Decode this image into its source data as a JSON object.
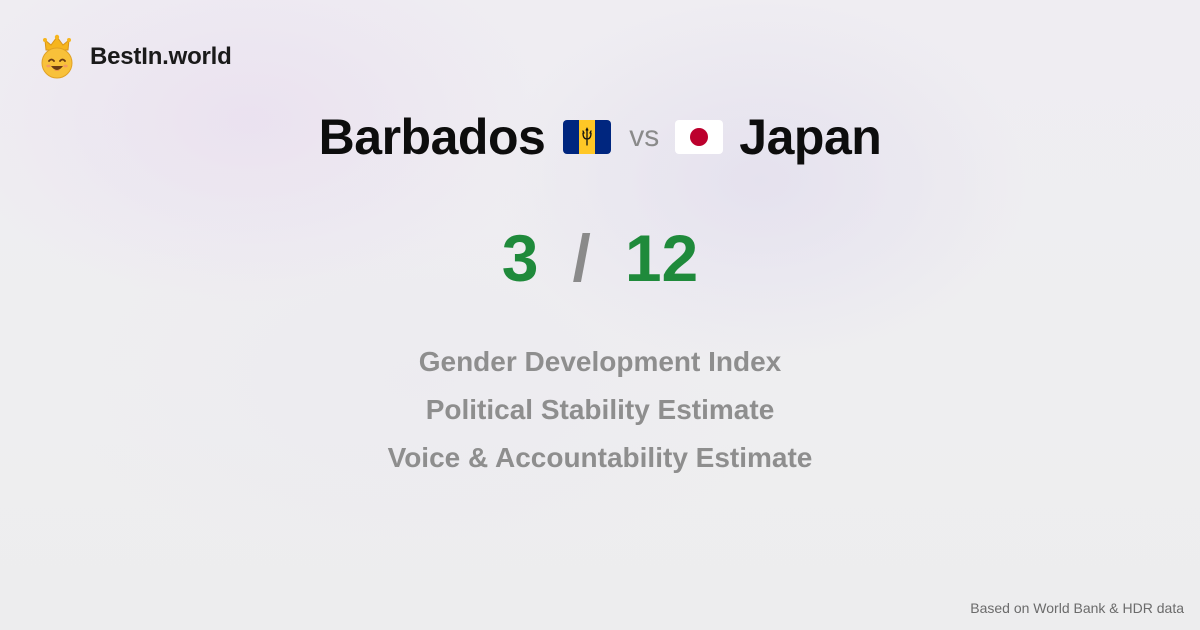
{
  "brand": {
    "name": "BestIn.world",
    "icon": "crown-smiley-icon"
  },
  "comparison": {
    "country_a": "Barbados",
    "flag_a": "barbados-flag-icon",
    "vs_label": "vs",
    "country_b": "Japan",
    "flag_b": "japan-flag-icon"
  },
  "score": {
    "a": "3",
    "separator": "/",
    "b": "12"
  },
  "metrics": [
    "Gender Development Index",
    "Political Stability Estimate",
    "Voice & Accountability Estimate"
  ],
  "footer": {
    "source_note": "Based on World Bank & HDR data"
  },
  "colors": {
    "score_green": "#1f8a3b",
    "muted_gray": "#8e8e8e",
    "barbados_blue": "#00267f",
    "barbados_gold": "#ffc726",
    "japan_red": "#bc002d"
  }
}
